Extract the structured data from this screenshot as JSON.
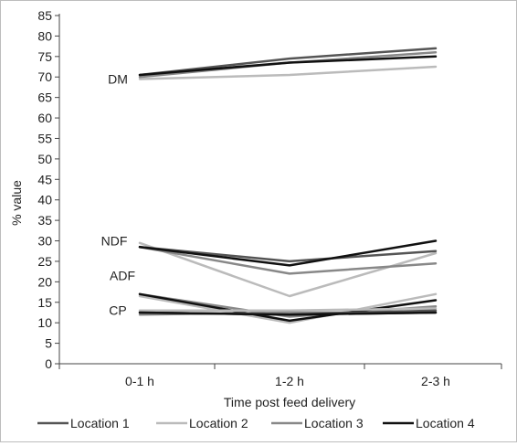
{
  "chart_data": {
    "type": "line",
    "xlabel": "Time post feed delivery",
    "ylabel": "% value",
    "categories": [
      "0-1 h",
      "1-2 h",
      "2-3 h"
    ],
    "ylim": [
      0,
      85
    ],
    "yticks": [
      0,
      5,
      10,
      15,
      20,
      25,
      30,
      35,
      40,
      45,
      50,
      55,
      60,
      65,
      70,
      75,
      80,
      85
    ],
    "grid": false,
    "legend_position": "bottom",
    "legend": [
      {
        "name": "Location 1",
        "color": "#555555"
      },
      {
        "name": "Location 2",
        "color": "#bbbbbb"
      },
      {
        "name": "Location 3",
        "color": "#888888"
      },
      {
        "name": "Location 4",
        "color": "#111111"
      }
    ],
    "annotations": [
      {
        "label": "DM",
        "y": 69.5
      },
      {
        "label": "NDF",
        "y": 30
      },
      {
        "label": "ADF",
        "y": 21.5
      },
      {
        "label": "CP",
        "y": 13
      }
    ],
    "groups": [
      {
        "name": "DM",
        "series": [
          {
            "name": "Location 1",
            "values": [
              70.5,
              74.5,
              77
            ]
          },
          {
            "name": "Location 2",
            "values": [
              69.5,
              70.5,
              72.5
            ]
          },
          {
            "name": "Location 3",
            "values": [
              70,
              73.5,
              76
            ]
          },
          {
            "name": "Location 4",
            "values": [
              70.5,
              73.5,
              75
            ]
          }
        ]
      },
      {
        "name": "NDF",
        "series": [
          {
            "name": "Location 1",
            "values": [
              28.5,
              25,
              27.5
            ]
          },
          {
            "name": "Location 2",
            "values": [
              29.5,
              16.5,
              27
            ]
          },
          {
            "name": "Location 3",
            "values": [
              28.5,
              22,
              24.5
            ]
          },
          {
            "name": "Location 4",
            "values": [
              28.5,
              24,
              30
            ]
          }
        ]
      },
      {
        "name": "CP",
        "series": [
          {
            "name": "Location 1",
            "values": [
              12.5,
              12,
              12.5
            ]
          },
          {
            "name": "Location 2",
            "values": [
              16.5,
              10,
              17
            ]
          },
          {
            "name": "Location 3",
            "values": [
              17,
              11.5,
              14
            ]
          },
          {
            "name": "Location 4",
            "values": [
              17,
              10.5,
              15.5
            ]
          }
        ]
      },
      {
        "name": "ADF",
        "series": [
          {
            "name": "Location 1",
            "values": [
              12.5,
              12,
              13
            ]
          },
          {
            "name": "Location 2",
            "values": [
              13,
              13,
              13.5
            ]
          },
          {
            "name": "Location 3",
            "values": [
              12,
              12.5,
              12.5
            ]
          },
          {
            "name": "Location 4",
            "values": [
              12.5,
              12,
              12.5
            ]
          }
        ]
      }
    ]
  }
}
